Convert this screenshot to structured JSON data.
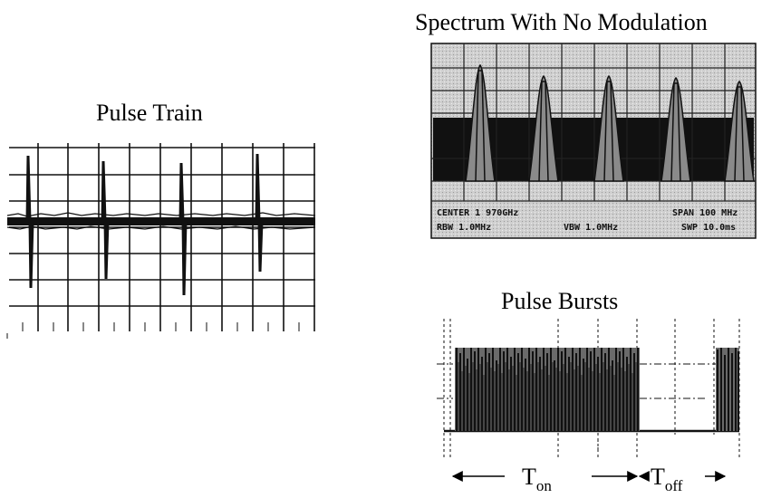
{
  "titles": {
    "pulse_train": "Pulse Train",
    "spectrum": "Spectrum With No Modulation",
    "bursts": "Pulse Bursts"
  },
  "spectrum_readout": {
    "line1_left": "CENTER 1 970GHz",
    "line1_right": "SPAN 100 MHz",
    "line2_left": "RBW 1.0MHz",
    "line2_mid": "VBW 1.0MHz",
    "line2_right": "SWP 10.0ms"
  },
  "timing_labels": {
    "t_on_base": "T",
    "t_on_sub": "on",
    "t_off_base": "T",
    "t_off_sub": "off"
  },
  "colors": {
    "trace": "#111111",
    "screen": "#d6d6d6",
    "grid": "#222222"
  }
}
